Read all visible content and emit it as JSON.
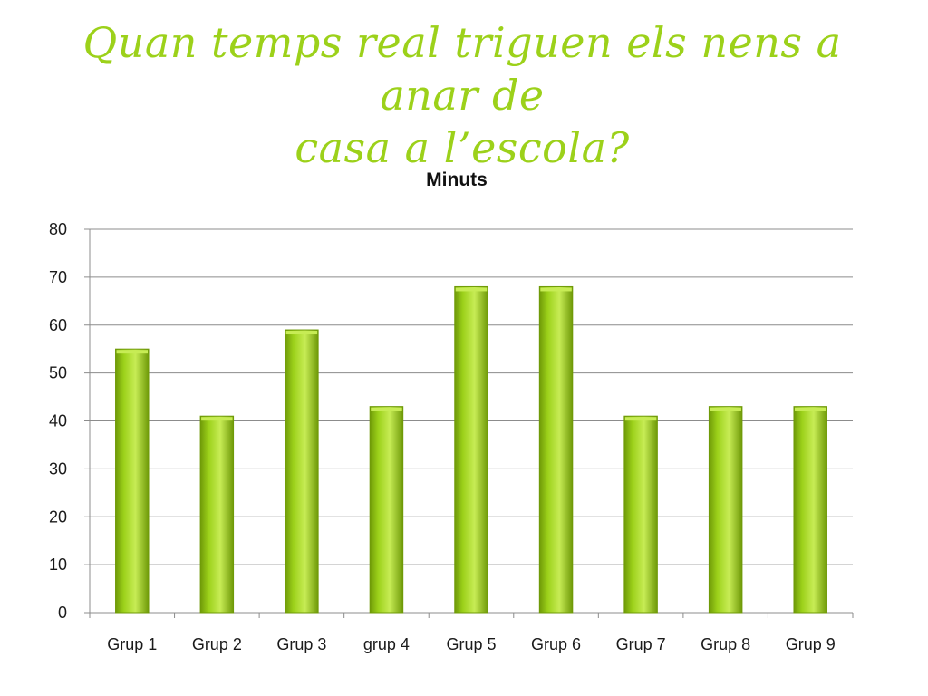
{
  "slide": {
    "title_line1": "Quan temps real triguen els nens a anar de",
    "title_line2": "casa a l’escola?"
  },
  "colors": {
    "title": "#9cd11a",
    "bar": "#9cd11a",
    "bar_dark": "#6f9a08",
    "bar_light": "#c7ec55",
    "gridline": "#8c8c8c"
  },
  "chart_data": {
    "type": "bar",
    "title": "Minuts",
    "xlabel": "",
    "ylabel": "",
    "categories": [
      "Grup 1",
      "Grup 2",
      "Grup 3",
      "grup 4",
      "Grup 5",
      "Grup 6",
      "Grup 7",
      "Grup 8",
      "Grup 9"
    ],
    "values": [
      55,
      41,
      59,
      43,
      68,
      68,
      41,
      43,
      43
    ],
    "ylim": [
      0,
      80
    ],
    "yticks": [
      0,
      10,
      20,
      30,
      40,
      50,
      60,
      70,
      80
    ],
    "grid": true,
    "legend": "none"
  }
}
